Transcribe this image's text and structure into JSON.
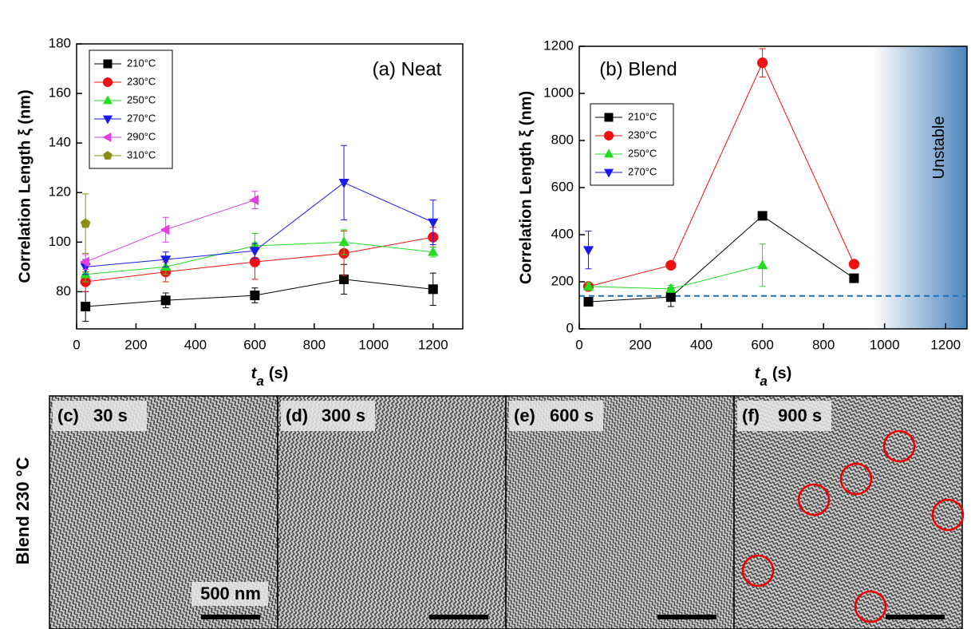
{
  "chart_data": [
    {
      "type": "line",
      "title": "(a) Neat",
      "ylabel": "Correlation Length ξ (nm)",
      "xlabel_symbol": "t",
      "xlabel_subscript": "a",
      "xlabel_unit": "(s)",
      "xlim": [
        0,
        1300
      ],
      "xticks": [
        0,
        200,
        400,
        600,
        800,
        1000,
        1200
      ],
      "ylim": [
        65,
        180
      ],
      "yticks": [
        80,
        100,
        120,
        140,
        160,
        180
      ],
      "legend": "upper left",
      "series": [
        {
          "name": "210°C",
          "color": "#000000",
          "marker": "square",
          "x": [
            30,
            300,
            600,
            900,
            1200
          ],
          "values": [
            74,
            76.5,
            78.5,
            85,
            81
          ],
          "errors": [
            6,
            3,
            3,
            6,
            6.5
          ]
        },
        {
          "name": "230°C",
          "color": "#ee1111",
          "marker": "circle",
          "x": [
            30,
            300,
            600,
            900,
            1200
          ],
          "values": [
            84,
            88,
            92,
            95.5,
            102
          ],
          "errors": [
            4,
            4,
            7,
            9,
            4
          ]
        },
        {
          "name": "250°C",
          "color": "#22dd22",
          "marker": "triangle-up",
          "x": [
            30,
            300,
            600,
            900,
            1200
          ],
          "values": [
            87,
            90,
            98.5,
            100,
            96
          ],
          "errors": [
            3,
            3,
            5,
            5,
            2
          ]
        },
        {
          "name": "270°C",
          "color": "#1a1aee",
          "marker": "triangle-down",
          "x": [
            30,
            300,
            600,
            900,
            1200
          ],
          "values": [
            90,
            93,
            96.5,
            124,
            108
          ],
          "errors": [
            3,
            3,
            3,
            15,
            9
          ]
        },
        {
          "name": "290°C",
          "color": "#e23ee2",
          "marker": "triangle-left",
          "x": [
            30,
            300,
            600
          ],
          "values": [
            92,
            105,
            117
          ],
          "errors": [
            3,
            5,
            3.5
          ]
        },
        {
          "name": "310°C",
          "color": "#8b8b16",
          "marker": "pentagon",
          "x": [
            30
          ],
          "values": [
            107.5
          ],
          "errors": [
            12
          ]
        }
      ]
    },
    {
      "type": "line",
      "title": "(b) Blend",
      "ylabel": "Correlation Length ξ (nm)",
      "xlabel_symbol": "t",
      "xlabel_subscript": "a",
      "xlabel_unit": "(s)",
      "xlim": [
        0,
        1270
      ],
      "xticks": [
        0,
        200,
        400,
        600,
        800,
        1000,
        1200
      ],
      "ylim": [
        0,
        1200
      ],
      "yticks": [
        0,
        200,
        400,
        600,
        800,
        1000,
        1200
      ],
      "legend": "left",
      "reference_line": 140,
      "shaded_region": [
        960,
        1270
      ],
      "shaded_label": "Unstable",
      "series": [
        {
          "name": "210°C",
          "color": "#000000",
          "marker": "square",
          "x": [
            30,
            300,
            600,
            900
          ],
          "values": [
            115,
            135,
            480,
            215
          ],
          "errors": [
            15,
            40,
            10,
            10
          ]
        },
        {
          "name": "230°C",
          "color": "#ee1111",
          "marker": "circle",
          "x": [
            30,
            300,
            600,
            900
          ],
          "values": [
            180,
            270,
            1130,
            275
          ],
          "errors": [
            10,
            10,
            60,
            10
          ]
        },
        {
          "name": "250°C",
          "color": "#22dd22",
          "marker": "triangle-up",
          "x": [
            30,
            300,
            600
          ],
          "values": [
            180,
            170,
            270
          ],
          "errors": [
            15,
            15,
            90
          ]
        },
        {
          "name": "270°C",
          "color": "#1a1aee",
          "marker": "triangle-down",
          "x": [
            30
          ],
          "values": [
            335
          ],
          "errors": [
            80
          ]
        }
      ]
    }
  ],
  "micrographs": {
    "side_label": "Blend 230 °C",
    "scale_bar": "500 nm",
    "panels": [
      {
        "label": "(c)",
        "time": "30 s"
      },
      {
        "label": "(d)",
        "time": "300 s"
      },
      {
        "label": "(e)",
        "time": "600 s"
      },
      {
        "label": "(f)",
        "time": "900 s"
      }
    ]
  }
}
